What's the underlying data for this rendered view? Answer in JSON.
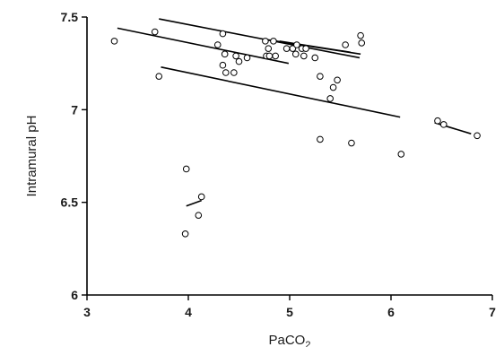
{
  "chart_data": {
    "type": "scatter",
    "title": "",
    "xlabel": "PaCO",
    "xlabel_subscript": "2",
    "ylabel": "Intramural pH",
    "xlim": [
      3,
      7
    ],
    "ylim": [
      6,
      7.5
    ],
    "x_ticks": [
      "3",
      "4",
      "5",
      "6",
      "7"
    ],
    "y_ticks": [
      "6",
      "6.5",
      "7",
      "7.5"
    ],
    "grid": false,
    "legend": "none",
    "points": [
      {
        "x": 3.27,
        "y": 7.37
      },
      {
        "x": 3.67,
        "y": 7.42
      },
      {
        "x": 3.71,
        "y": 7.18
      },
      {
        "x": 4.29,
        "y": 7.35
      },
      {
        "x": 4.34,
        "y": 7.41
      },
      {
        "x": 4.34,
        "y": 7.24
      },
      {
        "x": 4.36,
        "y": 7.3
      },
      {
        "x": 4.37,
        "y": 7.2
      },
      {
        "x": 4.45,
        "y": 7.2
      },
      {
        "x": 4.47,
        "y": 7.29
      },
      {
        "x": 4.5,
        "y": 7.26
      },
      {
        "x": 4.58,
        "y": 7.28
      },
      {
        "x": 4.76,
        "y": 7.37
      },
      {
        "x": 4.77,
        "y": 7.29
      },
      {
        "x": 4.79,
        "y": 7.33
      },
      {
        "x": 4.8,
        "y": 7.29
      },
      {
        "x": 4.84,
        "y": 7.37
      },
      {
        "x": 4.86,
        "y": 7.29
      },
      {
        "x": 4.97,
        "y": 7.33
      },
      {
        "x": 5.03,
        "y": 7.33
      },
      {
        "x": 5.06,
        "y": 7.3
      },
      {
        "x": 5.07,
        "y": 7.35
      },
      {
        "x": 5.12,
        "y": 7.33
      },
      {
        "x": 5.14,
        "y": 7.29
      },
      {
        "x": 5.16,
        "y": 7.33
      },
      {
        "x": 5.25,
        "y": 7.28
      },
      {
        "x": 5.3,
        "y": 7.18
      },
      {
        "x": 5.4,
        "y": 7.06
      },
      {
        "x": 5.43,
        "y": 7.12
      },
      {
        "x": 5.47,
        "y": 7.16
      },
      {
        "x": 5.55,
        "y": 7.35
      },
      {
        "x": 5.7,
        "y": 7.4
      },
      {
        "x": 5.71,
        "y": 7.36
      },
      {
        "x": 5.3,
        "y": 6.84
      },
      {
        "x": 5.61,
        "y": 6.82
      },
      {
        "x": 6.1,
        "y": 6.76
      },
      {
        "x": 6.46,
        "y": 6.94
      },
      {
        "x": 6.52,
        "y": 6.92
      },
      {
        "x": 6.85,
        "y": 6.86
      },
      {
        "x": 3.98,
        "y": 6.68
      },
      {
        "x": 4.13,
        "y": 6.53
      },
      {
        "x": 4.1,
        "y": 6.43
      },
      {
        "x": 3.97,
        "y": 6.33
      }
    ],
    "regression_lines": [
      {
        "x1": 3.3,
        "y1": 7.44,
        "x2": 4.99,
        "y2": 7.25
      },
      {
        "x1": 3.73,
        "y1": 7.23,
        "x2": 6.09,
        "y2": 6.96
      },
      {
        "x1": 3.71,
        "y1": 7.49,
        "x2": 5.69,
        "y2": 7.28
      },
      {
        "x1": 4.75,
        "y1": 7.38,
        "x2": 5.7,
        "y2": 7.3
      },
      {
        "x1": 4.9,
        "y1": 7.37,
        "x2": 5.6,
        "y2": 7.31
      },
      {
        "x1": 6.43,
        "y1": 6.93,
        "x2": 6.79,
        "y2": 6.87
      },
      {
        "x1": 3.98,
        "y1": 6.48,
        "x2": 4.13,
        "y2": 6.51
      }
    ]
  }
}
